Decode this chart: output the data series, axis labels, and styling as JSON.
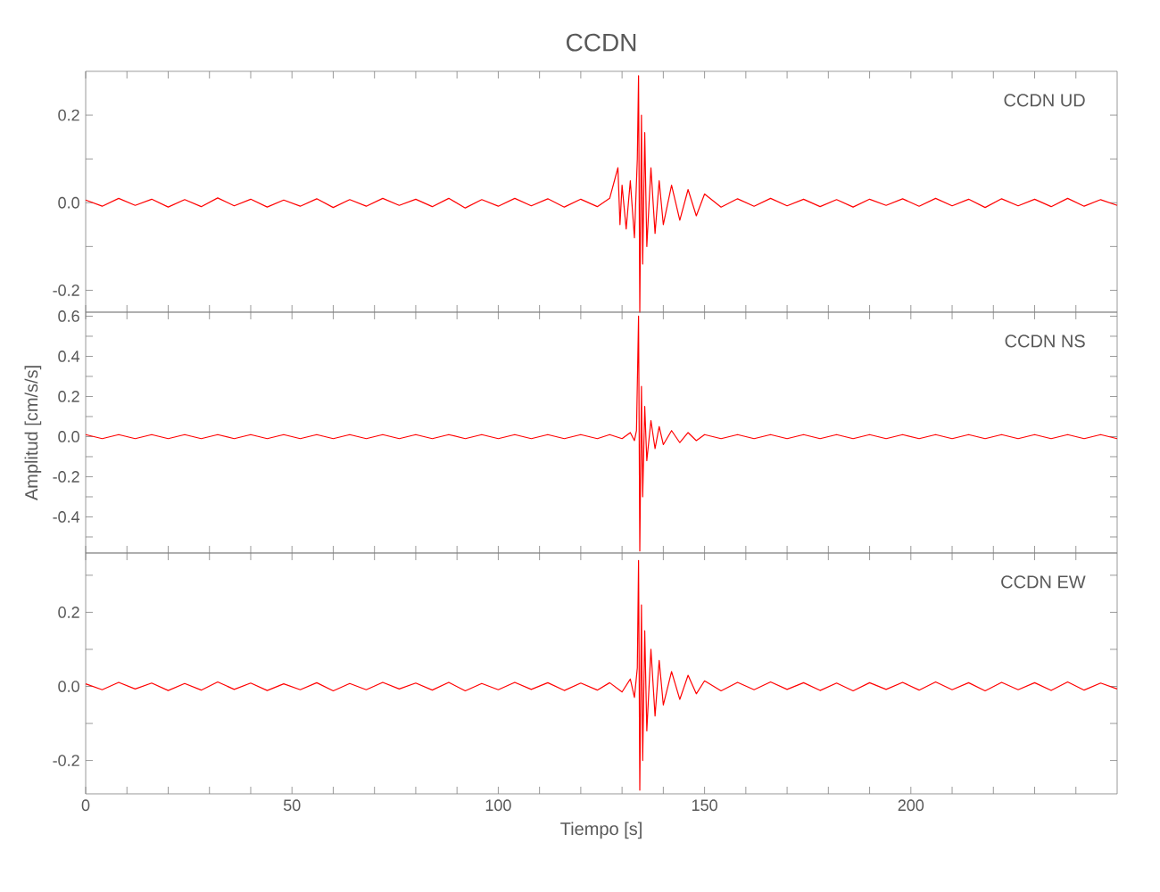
{
  "chart_data": [
    {
      "type": "line",
      "title": "CCDN",
      "annotations": [
        "CCDN   UD"
      ],
      "xlim": [
        0,
        250
      ],
      "ylim": [
        -0.25,
        0.3
      ],
      "tick_labels": "y",
      "xticks": [
        {
          "value": 0,
          "label": null
        },
        {
          "value": 10,
          "label": null
        },
        {
          "value": 20,
          "label": null
        },
        {
          "value": 30,
          "label": null
        },
        {
          "value": 40,
          "label": null
        },
        {
          "value": 50,
          "label": null
        },
        {
          "value": 60,
          "label": null
        },
        {
          "value": 70,
          "label": null
        },
        {
          "value": 80,
          "label": null
        },
        {
          "value": 90,
          "label": null
        },
        {
          "value": 100,
          "label": null
        },
        {
          "value": 110,
          "label": null
        },
        {
          "value": 120,
          "label": null
        },
        {
          "value": 130,
          "label": null
        },
        {
          "value": 140,
          "label": null
        },
        {
          "value": 150,
          "label": null
        },
        {
          "value": 160,
          "label": null
        },
        {
          "value": 170,
          "label": null
        },
        {
          "value": 180,
          "label": null
        },
        {
          "value": 190,
          "label": null
        },
        {
          "value": 200,
          "label": null
        },
        {
          "value": 210,
          "label": null
        },
        {
          "value": 220,
          "label": null
        },
        {
          "value": 230,
          "label": null
        },
        {
          "value": 240,
          "label": null
        }
      ],
      "yticks": [
        {
          "value": -0.2,
          "label": "-0.2"
        },
        {
          "value": -0.1,
          "label": null
        },
        {
          "value": 0,
          "label": "0.0"
        },
        {
          "value": 0.1,
          "label": null
        },
        {
          "value": 0.2,
          "label": "0.2"
        }
      ],
      "series": [
        {
          "color": "#ff0000",
          "x": [
            0,
            4,
            8,
            12,
            16,
            20,
            24,
            28,
            32,
            36,
            40,
            44,
            48,
            52,
            56,
            60,
            64,
            68,
            72,
            76,
            80,
            84,
            88,
            92,
            96,
            100,
            104,
            108,
            112,
            116,
            120,
            124,
            127,
            129,
            129.5,
            130,
            131,
            132,
            133,
            133.7,
            134,
            134.3,
            134.7,
            135,
            135.5,
            136,
            137,
            138,
            139,
            140,
            142,
            144,
            146,
            148,
            150,
            154,
            158,
            162,
            166,
            170,
            174,
            178,
            182,
            186,
            190,
            194,
            198,
            202,
            206,
            210,
            214,
            218,
            222,
            226,
            230,
            234,
            238,
            242,
            246,
            250
          ],
          "values": [
            0.006,
            -0.008,
            0.01,
            -0.006,
            0.008,
            -0.01,
            0.007,
            -0.009,
            0.011,
            -0.007,
            0.008,
            -0.01,
            0.006,
            -0.008,
            0.009,
            -0.011,
            0.007,
            -0.008,
            0.01,
            -0.006,
            0.008,
            -0.009,
            0.01,
            -0.012,
            0.007,
            -0.008,
            0.01,
            -0.007,
            0.009,
            -0.01,
            0.008,
            -0.009,
            0.01,
            0.08,
            -0.05,
            0.04,
            -0.06,
            0.05,
            -0.08,
            0.1,
            0.29,
            -0.25,
            0.2,
            -0.14,
            0.16,
            -0.1,
            0.08,
            -0.07,
            0.05,
            -0.05,
            0.04,
            -0.04,
            0.03,
            -0.03,
            0.02,
            -0.01,
            0.009,
            -0.008,
            0.01,
            -0.007,
            0.008,
            -0.009,
            0.007,
            -0.01,
            0.008,
            -0.006,
            0.009,
            -0.008,
            0.01,
            -0.007,
            0.008,
            -0.011,
            0.009,
            -0.007,
            0.008,
            -0.009,
            0.01,
            -0.008,
            0.007,
            -0.006
          ]
        }
      ]
    },
    {
      "type": "line",
      "ylabel": "Amplitud [cm/s/s]",
      "annotations": [
        "CCDN   NS"
      ],
      "xlim": [
        0,
        250
      ],
      "ylim": [
        -0.58,
        0.62
      ],
      "tick_labels": "y",
      "xticks": [
        {
          "value": 0,
          "label": null
        },
        {
          "value": 10,
          "label": null
        },
        {
          "value": 20,
          "label": null
        },
        {
          "value": 30,
          "label": null
        },
        {
          "value": 40,
          "label": null
        },
        {
          "value": 50,
          "label": null
        },
        {
          "value": 60,
          "label": null
        },
        {
          "value": 70,
          "label": null
        },
        {
          "value": 80,
          "label": null
        },
        {
          "value": 90,
          "label": null
        },
        {
          "value": 100,
          "label": null
        },
        {
          "value": 110,
          "label": null
        },
        {
          "value": 120,
          "label": null
        },
        {
          "value": 130,
          "label": null
        },
        {
          "value": 140,
          "label": null
        },
        {
          "value": 150,
          "label": null
        },
        {
          "value": 160,
          "label": null
        },
        {
          "value": 170,
          "label": null
        },
        {
          "value": 180,
          "label": null
        },
        {
          "value": 190,
          "label": null
        },
        {
          "value": 200,
          "label": null
        },
        {
          "value": 210,
          "label": null
        },
        {
          "value": 220,
          "label": null
        },
        {
          "value": 230,
          "label": null
        },
        {
          "value": 240,
          "label": null
        }
      ],
      "yticks": [
        {
          "value": -0.5,
          "label": null
        },
        {
          "value": -0.4,
          "label": "-0.4"
        },
        {
          "value": -0.3,
          "label": null
        },
        {
          "value": -0.2,
          "label": "-0.2"
        },
        {
          "value": -0.1,
          "label": null
        },
        {
          "value": 0,
          "label": "0.0"
        },
        {
          "value": 0.1,
          "label": null
        },
        {
          "value": 0.2,
          "label": "0.2"
        },
        {
          "value": 0.3,
          "label": null
        },
        {
          "value": 0.4,
          "label": "0.4"
        },
        {
          "value": 0.5,
          "label": null
        },
        {
          "value": 0.6,
          "label": "0.6"
        }
      ],
      "series": [
        {
          "color": "#ff0000",
          "x": [
            0,
            4,
            8,
            12,
            16,
            20,
            24,
            28,
            32,
            36,
            40,
            44,
            48,
            52,
            56,
            60,
            64,
            68,
            72,
            76,
            80,
            84,
            88,
            92,
            96,
            100,
            104,
            108,
            112,
            116,
            120,
            124,
            127,
            130,
            132,
            133,
            133.5,
            134,
            134.3,
            134.7,
            135,
            135.5,
            136,
            137,
            138,
            139,
            140,
            142,
            144,
            146,
            148,
            150,
            154,
            158,
            162,
            166,
            170,
            174,
            178,
            182,
            186,
            190,
            194,
            198,
            202,
            206,
            210,
            214,
            218,
            222,
            226,
            230,
            234,
            238,
            242,
            246,
            250
          ],
          "values": [
            0.01,
            -0.01,
            0.01,
            -0.01,
            0.01,
            -0.01,
            0.01,
            -0.01,
            0.01,
            -0.01,
            0.01,
            -0.01,
            0.01,
            -0.01,
            0.01,
            -0.01,
            0.01,
            -0.01,
            0.01,
            -0.01,
            0.01,
            -0.01,
            0.01,
            -0.01,
            0.01,
            -0.01,
            0.01,
            -0.01,
            0.01,
            -0.01,
            0.01,
            -0.01,
            0.01,
            -0.01,
            0.02,
            -0.02,
            0.03,
            0.6,
            -0.57,
            0.25,
            -0.3,
            0.15,
            -0.12,
            0.08,
            -0.06,
            0.05,
            -0.04,
            0.03,
            -0.03,
            0.02,
            -0.02,
            0.01,
            -0.01,
            0.01,
            -0.01,
            0.01,
            -0.01,
            0.01,
            -0.01,
            0.01,
            -0.01,
            0.01,
            -0.01,
            0.01,
            -0.01,
            0.01,
            -0.01,
            0.01,
            -0.01,
            0.01,
            -0.01,
            0.01,
            -0.01,
            0.01,
            -0.01,
            0.01,
            -0.01
          ]
        }
      ]
    },
    {
      "type": "line",
      "xlabel": "Tiempo [s]",
      "annotations": [
        "CCDN   EW"
      ],
      "xlim": [
        0,
        250
      ],
      "ylim": [
        -0.29,
        0.36
      ],
      "xticks": [
        {
          "value": 0,
          "label": "0"
        },
        {
          "value": 10,
          "label": null
        },
        {
          "value": 20,
          "label": null
        },
        {
          "value": 30,
          "label": null
        },
        {
          "value": 40,
          "label": null
        },
        {
          "value": 50,
          "label": "50"
        },
        {
          "value": 60,
          "label": null
        },
        {
          "value": 70,
          "label": null
        },
        {
          "value": 80,
          "label": null
        },
        {
          "value": 90,
          "label": null
        },
        {
          "value": 100,
          "label": "100"
        },
        {
          "value": 110,
          "label": null
        },
        {
          "value": 120,
          "label": null
        },
        {
          "value": 130,
          "label": null
        },
        {
          "value": 140,
          "label": null
        },
        {
          "value": 150,
          "label": "150"
        },
        {
          "value": 160,
          "label": null
        },
        {
          "value": 170,
          "label": null
        },
        {
          "value": 180,
          "label": null
        },
        {
          "value": 190,
          "label": null
        },
        {
          "value": 200,
          "label": "200"
        },
        {
          "value": 210,
          "label": null
        },
        {
          "value": 220,
          "label": null
        },
        {
          "value": 230,
          "label": null
        },
        {
          "value": 240,
          "label": null
        }
      ],
      "yticks": [
        {
          "value": -0.2,
          "label": "-0.2"
        },
        {
          "value": -0.1,
          "label": null
        },
        {
          "value": 0,
          "label": "0.0"
        },
        {
          "value": 0.1,
          "label": null
        },
        {
          "value": 0.2,
          "label": "0.2"
        },
        {
          "value": 0.3,
          "label": null
        }
      ],
      "series": [
        {
          "color": "#ff0000",
          "x": [
            0,
            4,
            8,
            12,
            16,
            20,
            24,
            28,
            32,
            36,
            40,
            44,
            48,
            52,
            56,
            60,
            64,
            68,
            72,
            76,
            80,
            84,
            88,
            92,
            96,
            100,
            104,
            108,
            112,
            116,
            120,
            124,
            127,
            130,
            132,
            133,
            133.7,
            134,
            134.3,
            134.7,
            135,
            135.5,
            136,
            137,
            138,
            139,
            140,
            142,
            144,
            146,
            148,
            150,
            154,
            158,
            162,
            166,
            170,
            174,
            178,
            182,
            186,
            190,
            194,
            198,
            202,
            206,
            210,
            214,
            218,
            222,
            226,
            230,
            234,
            238,
            242,
            246,
            250
          ],
          "values": [
            0.007,
            -0.009,
            0.011,
            -0.007,
            0.009,
            -0.011,
            0.008,
            -0.01,
            0.012,
            -0.008,
            0.009,
            -0.011,
            0.007,
            -0.009,
            0.01,
            -0.012,
            0.008,
            -0.009,
            0.011,
            -0.007,
            0.009,
            -0.01,
            0.011,
            -0.012,
            0.008,
            -0.009,
            0.011,
            -0.008,
            0.01,
            -0.011,
            0.009,
            -0.01,
            0.01,
            -0.015,
            0.02,
            -0.03,
            0.05,
            0.34,
            -0.28,
            0.22,
            -0.2,
            0.15,
            -0.12,
            0.1,
            -0.08,
            0.07,
            -0.05,
            0.04,
            -0.035,
            0.03,
            -0.02,
            0.015,
            -0.012,
            0.011,
            -0.009,
            0.012,
            -0.008,
            0.01,
            -0.011,
            0.009,
            -0.012,
            0.01,
            -0.008,
            0.011,
            -0.01,
            0.012,
            -0.009,
            0.01,
            -0.012,
            0.011,
            -0.009,
            0.01,
            -0.011,
            0.012,
            -0.01,
            0.009,
            -0.007
          ]
        }
      ]
    }
  ]
}
